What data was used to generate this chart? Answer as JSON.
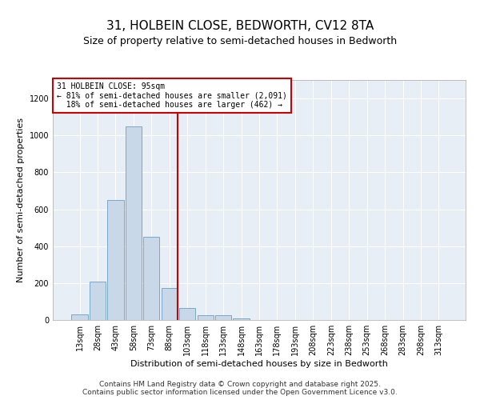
{
  "title_line1": "31, HOLBEIN CLOSE, BEDWORTH, CV12 8TA",
  "title_line2": "Size of property relative to semi-detached houses in Bedworth",
  "xlabel": "Distribution of semi-detached houses by size in Bedworth",
  "ylabel": "Number of semi-detached properties",
  "bins": [
    "13sqm",
    "28sqm",
    "43sqm",
    "58sqm",
    "73sqm",
    "88sqm",
    "103sqm",
    "118sqm",
    "133sqm",
    "148sqm",
    "163sqm",
    "178sqm",
    "193sqm",
    "208sqm",
    "223sqm",
    "238sqm",
    "253sqm",
    "268sqm",
    "283sqm",
    "298sqm",
    "313sqm"
  ],
  "bar_values": [
    30,
    210,
    650,
    1050,
    450,
    175,
    65,
    25,
    25,
    10,
    0,
    0,
    0,
    0,
    0,
    0,
    0,
    0,
    0,
    0,
    0
  ],
  "bar_color": "#c8d8e8",
  "bar_edge_color": "#7aA8c8",
  "vline_x": 5.45,
  "annotation_text": "31 HOLBEIN CLOSE: 95sqm\n← 81% of semi-detached houses are smaller (2,091)\n  18% of semi-detached houses are larger (462) →",
  "annotation_box_color": "#ffffff",
  "annotation_box_edge": "#cc0000",
  "vline_color": "#cc0000",
  "ylim": [
    0,
    1300
  ],
  "yticks": [
    0,
    200,
    400,
    600,
    800,
    1000,
    1200
  ],
  "background_color": "#e8eef5",
  "footer_line1": "Contains HM Land Registry data © Crown copyright and database right 2025.",
  "footer_line2": "Contains public sector information licensed under the Open Government Licence v3.0.",
  "title_fontsize": 11,
  "subtitle_fontsize": 9,
  "axis_fontsize": 8,
  "tick_fontsize": 7,
  "footer_fontsize": 6.5
}
